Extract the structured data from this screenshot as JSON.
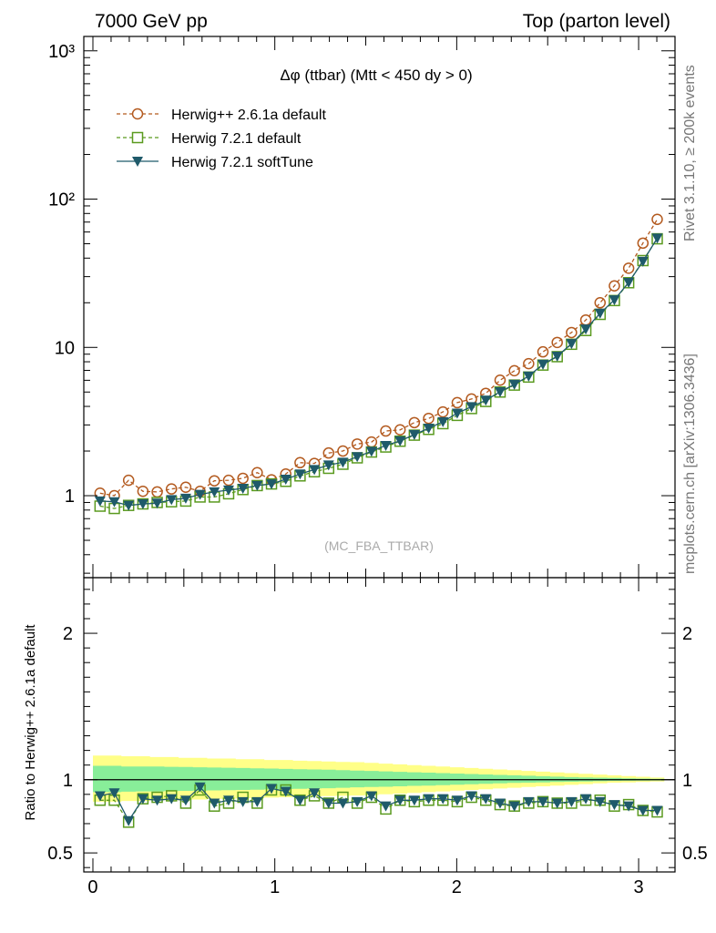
{
  "header": {
    "left": "7000 GeV pp",
    "right": "Top (parton level)"
  },
  "side_labels": {
    "rivet": "Rivet 3.1.10, ≥ 200k events",
    "mcplots": "mcplots.cern.ch [arXiv:1306.3436]"
  },
  "chart_data": [
    {
      "type": "line",
      "title": "Δφ (ttbar) (Mtt < 450 dy > 0)",
      "watermark": "(MC_FBA_TTBAR)",
      "yscale": "log",
      "xlim": [
        -0.05,
        3.2
      ],
      "ylim": [
        0.28,
        1250
      ],
      "ytick_labels": [
        "1",
        "10",
        "10²",
        "10³"
      ],
      "legend_position": "top-left",
      "x": [
        0.0393,
        0.1178,
        0.1963,
        0.2749,
        0.3534,
        0.432,
        0.5105,
        0.589,
        0.6676,
        0.7461,
        0.8247,
        0.9032,
        0.9817,
        1.0603,
        1.1388,
        1.2174,
        1.2959,
        1.3744,
        1.453,
        1.5315,
        1.6101,
        1.6886,
        1.7671,
        1.8457,
        1.9242,
        2.0028,
        2.0813,
        2.1598,
        2.2384,
        2.3169,
        2.3955,
        2.474,
        2.5525,
        2.6311,
        2.7096,
        2.7882,
        2.8667,
        2.9452,
        3.0238,
        3.1023
      ],
      "series": [
        {
          "name": "Herwig++ 2.6.1a default",
          "color": "#b35a1f",
          "marker": "open-circle",
          "line": "dashed",
          "values": [
            1.04,
            1.0,
            1.27,
            1.07,
            1.06,
            1.11,
            1.14,
            1.07,
            1.26,
            1.27,
            1.31,
            1.43,
            1.28,
            1.4,
            1.67,
            1.65,
            1.94,
            2.0,
            2.23,
            2.3,
            2.73,
            2.78,
            3.11,
            3.32,
            3.67,
            4.24,
            4.49,
            4.9,
            6.01,
            6.96,
            7.77,
            9.33,
            10.8,
            12.6,
            15.3,
            20.0,
            26.0,
            34.2,
            50.5,
            73.0
          ]
        },
        {
          "name": "Herwig 7.2.1 default",
          "color": "#5a9a1f",
          "marker": "open-square",
          "line": "dashed",
          "values": [
            0.85,
            0.82,
            0.86,
            0.88,
            0.9,
            0.91,
            0.92,
            0.98,
            0.98,
            1.03,
            1.1,
            1.17,
            1.2,
            1.25,
            1.36,
            1.45,
            1.53,
            1.63,
            1.8,
            1.97,
            2.13,
            2.33,
            2.56,
            2.8,
            3.06,
            3.48,
            3.87,
            4.32,
            5.0,
            5.57,
            6.31,
            7.6,
            8.66,
            10.5,
            13.0,
            16.7,
            20.7,
            27.3,
            38.5,
            54.0
          ]
        },
        {
          "name": "Herwig 7.2.1 softTune",
          "color": "#1f5a6a",
          "marker": "filled-triangle-down",
          "line": "solid",
          "values": [
            0.92,
            0.91,
            0.86,
            0.88,
            0.89,
            0.94,
            0.96,
            1.02,
            1.06,
            1.09,
            1.12,
            1.17,
            1.2,
            1.29,
            1.4,
            1.5,
            1.61,
            1.68,
            1.83,
            1.99,
            2.18,
            2.34,
            2.58,
            2.85,
            3.15,
            3.6,
            3.98,
            4.4,
            5.02,
            5.63,
            6.4,
            7.68,
            8.72,
            10.6,
            13.3,
            17.0,
            20.9,
            27.4,
            38.0,
            54.5
          ]
        }
      ]
    },
    {
      "type": "line",
      "ylabel": "Ratio to Herwig++ 2.6.1a default",
      "xlim": [
        -0.05,
        3.2
      ],
      "ylim": [
        0.37,
        2.38
      ],
      "xtick_labels": [
        "0",
        "1",
        "2",
        "3"
      ],
      "ytick_labels": [
        "0.5",
        "1",
        "2"
      ],
      "reference_line": 1,
      "bands": [
        {
          "color": "#ffff88",
          "upper_rel": [
            0.165,
            0.165,
            0.16,
            0.16,
            0.155,
            0.155,
            0.15,
            0.15,
            0.145,
            0.145,
            0.14,
            0.14,
            0.135,
            0.135,
            0.13,
            0.128,
            0.125,
            0.122,
            0.12,
            0.115,
            0.11,
            0.105,
            0.1,
            0.095,
            0.09,
            0.085,
            0.08,
            0.075,
            0.07,
            0.065,
            0.06,
            0.055,
            0.05,
            0.045,
            0.04,
            0.035,
            0.03,
            0.025,
            0.02,
            0.015
          ],
          "lower_rel": [
            0.15,
            0.15,
            0.145,
            0.145,
            0.14,
            0.14,
            0.135,
            0.135,
            0.13,
            0.13,
            0.128,
            0.125,
            0.122,
            0.12,
            0.118,
            0.115,
            0.112,
            0.11,
            0.108,
            0.105,
            0.1,
            0.095,
            0.09,
            0.085,
            0.08,
            0.075,
            0.07,
            0.065,
            0.06,
            0.055,
            0.05,
            0.045,
            0.04,
            0.035,
            0.03,
            0.025,
            0.02,
            0.018,
            0.015,
            0.012
          ]
        },
        {
          "color": "#88ee99",
          "upper_rel": [
            0.095,
            0.095,
            0.09,
            0.09,
            0.09,
            0.088,
            0.087,
            0.085,
            0.083,
            0.082,
            0.08,
            0.078,
            0.076,
            0.074,
            0.072,
            0.07,
            0.068,
            0.065,
            0.062,
            0.06,
            0.057,
            0.054,
            0.051,
            0.048,
            0.045,
            0.042,
            0.039,
            0.036,
            0.033,
            0.03,
            0.027,
            0.024,
            0.021,
            0.018,
            0.016,
            0.014,
            0.012,
            0.01,
            0.008,
            0.006
          ],
          "lower_rel": [
            0.085,
            0.085,
            0.082,
            0.08,
            0.08,
            0.078,
            0.076,
            0.075,
            0.073,
            0.072,
            0.07,
            0.068,
            0.066,
            0.064,
            0.062,
            0.06,
            0.058,
            0.055,
            0.052,
            0.05,
            0.048,
            0.045,
            0.042,
            0.04,
            0.037,
            0.034,
            0.031,
            0.028,
            0.025,
            0.022,
            0.02,
            0.018,
            0.016,
            0.014,
            0.012,
            0.01,
            0.008,
            0.007,
            0.006,
            0.005
          ]
        }
      ],
      "series": [
        {
          "name": "Herwig 7.2.1 default",
          "color": "#5a9a1f",
          "marker": "open-square",
          "line": "dashed",
          "values": [
            0.86,
            0.86,
            0.71,
            0.87,
            0.88,
            0.89,
            0.84,
            0.93,
            0.82,
            0.84,
            0.88,
            0.84,
            0.93,
            0.93,
            0.86,
            0.89,
            0.84,
            0.88,
            0.84,
            0.88,
            0.8,
            0.86,
            0.85,
            0.86,
            0.86,
            0.85,
            0.88,
            0.86,
            0.83,
            0.82,
            0.84,
            0.85,
            0.84,
            0.84,
            0.86,
            0.86,
            0.82,
            0.83,
            0.79,
            0.78
          ]
        },
        {
          "name": "Herwig 7.2.1 softTune",
          "color": "#1f5a6a",
          "marker": "filled-triangle-down",
          "line": "solid",
          "values": [
            0.89,
            0.91,
            0.72,
            0.87,
            0.86,
            0.87,
            0.86,
            0.95,
            0.84,
            0.86,
            0.85,
            0.85,
            0.94,
            0.92,
            0.86,
            0.91,
            0.84,
            0.84,
            0.85,
            0.89,
            0.82,
            0.86,
            0.86,
            0.87,
            0.87,
            0.86,
            0.89,
            0.87,
            0.84,
            0.82,
            0.85,
            0.85,
            0.84,
            0.85,
            0.87,
            0.85,
            0.83,
            0.82,
            0.79,
            0.79
          ]
        }
      ]
    }
  ]
}
